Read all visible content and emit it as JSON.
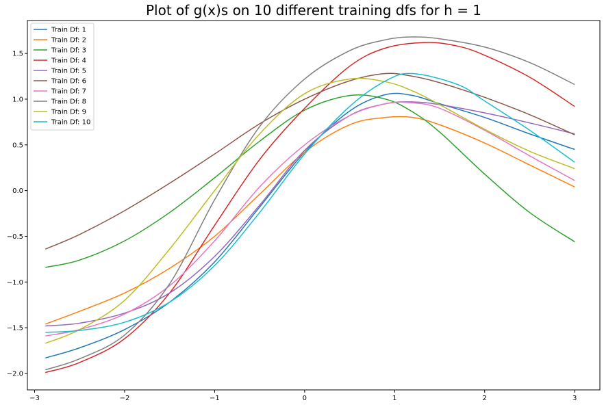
{
  "chart_data": {
    "type": "line",
    "title": "Plot of g(x)s on 10 different training dfs for h = 1",
    "xlabel": "",
    "ylabel": "",
    "xlim": [
      -3.08,
      3.28
    ],
    "ylim": [
      -2.18,
      1.86
    ],
    "xticks": [
      -3,
      -2,
      -1,
      0,
      1,
      2,
      3
    ],
    "xtick_labels": [
      "−3",
      "−2",
      "−1",
      "0",
      "1",
      "2",
      "3"
    ],
    "yticks": [
      -2.0,
      -1.5,
      -1.0,
      -0.5,
      0.0,
      0.5,
      1.0,
      1.5
    ],
    "ytick_labels": [
      "−2.0",
      "−1.5",
      "−1.0",
      "−0.5",
      "0.0",
      "0.5",
      "1.0",
      "1.5"
    ],
    "grid": false,
    "legend_position": "top-left",
    "series": [
      {
        "name": "Train Df: 1",
        "color": "#1f77b4",
        "x": [
          -2.88,
          -2.5,
          -2.0,
          -1.5,
          -1.0,
          -0.5,
          0.0,
          0.5,
          0.9,
          1.2,
          1.5,
          2.0,
          2.5,
          3.0
        ],
        "y": [
          -1.83,
          -1.72,
          -1.52,
          -1.22,
          -0.78,
          -0.18,
          0.42,
          0.87,
          1.05,
          1.04,
          0.95,
          0.8,
          0.62,
          0.45
        ]
      },
      {
        "name": "Train Df: 2",
        "color": "#ff7f0e",
        "x": [
          -2.88,
          -2.5,
          -2.0,
          -1.5,
          -1.0,
          -0.5,
          0.0,
          0.5,
          0.9,
          1.2,
          1.5,
          2.0,
          2.5,
          3.0
        ],
        "y": [
          -1.46,
          -1.32,
          -1.12,
          -0.85,
          -0.5,
          -0.04,
          0.42,
          0.72,
          0.8,
          0.8,
          0.72,
          0.52,
          0.28,
          0.04
        ]
      },
      {
        "name": "Train Df: 3",
        "color": "#2ca02c",
        "x": [
          -2.88,
          -2.5,
          -2.0,
          -1.5,
          -1.0,
          -0.5,
          0.0,
          0.5,
          0.9,
          1.2,
          1.5,
          2.0,
          2.5,
          3.0
        ],
        "y": [
          -0.84,
          -0.76,
          -0.55,
          -0.24,
          0.14,
          0.54,
          0.88,
          1.04,
          1.0,
          0.86,
          0.64,
          0.18,
          -0.24,
          -0.56
        ]
      },
      {
        "name": "Train Df: 4",
        "color": "#d62728",
        "x": [
          -2.88,
          -2.5,
          -2.0,
          -1.5,
          -1.0,
          -0.5,
          0.0,
          0.5,
          0.9,
          1.35,
          1.7,
          2.0,
          2.5,
          3.0
        ],
        "y": [
          -1.99,
          -1.88,
          -1.62,
          -1.12,
          -0.38,
          0.34,
          0.9,
          1.36,
          1.56,
          1.62,
          1.58,
          1.48,
          1.24,
          0.92
        ]
      },
      {
        "name": "Train Df: 5",
        "color": "#9467bd",
        "x": [
          -2.88,
          -2.5,
          -2.0,
          -1.5,
          -1.0,
          -0.5,
          0.0,
          0.5,
          0.9,
          1.2,
          1.5,
          2.0,
          2.5,
          3.0
        ],
        "y": [
          -1.48,
          -1.45,
          -1.34,
          -1.12,
          -0.72,
          -0.16,
          0.44,
          0.82,
          0.95,
          0.97,
          0.94,
          0.85,
          0.74,
          0.62
        ]
      },
      {
        "name": "Train Df: 6",
        "color": "#8c564b",
        "x": [
          -2.88,
          -2.5,
          -2.0,
          -1.5,
          -1.0,
          -0.5,
          0.0,
          0.5,
          0.9,
          1.2,
          1.5,
          2.0,
          2.5,
          3.0
        ],
        "y": [
          -0.64,
          -0.48,
          -0.22,
          0.08,
          0.4,
          0.73,
          1.0,
          1.2,
          1.28,
          1.25,
          1.18,
          1.02,
          0.83,
          0.61
        ]
      },
      {
        "name": "Train Df: 7",
        "color": "#e377c2",
        "x": [
          -2.88,
          -2.5,
          -2.0,
          -1.5,
          -1.0,
          -0.5,
          0.0,
          0.5,
          0.9,
          1.2,
          1.5,
          2.0,
          2.5,
          3.0
        ],
        "y": [
          -1.59,
          -1.52,
          -1.35,
          -1.04,
          -0.55,
          0.04,
          0.5,
          0.82,
          0.95,
          0.96,
          0.9,
          0.66,
          0.38,
          0.11
        ]
      },
      {
        "name": "Train Df: 8",
        "color": "#7f7f7f",
        "x": [
          -2.88,
          -2.5,
          -2.0,
          -1.5,
          -1.0,
          -0.5,
          0.0,
          0.5,
          0.9,
          1.2,
          1.5,
          2.0,
          2.5,
          3.0
        ],
        "y": [
          -1.96,
          -1.84,
          -1.58,
          -1.02,
          -0.1,
          0.7,
          1.22,
          1.53,
          1.65,
          1.68,
          1.66,
          1.57,
          1.4,
          1.16
        ]
      },
      {
        "name": "Train Df: 9",
        "color": "#bcbd22",
        "x": [
          -2.88,
          -2.5,
          -2.0,
          -1.5,
          -1.0,
          -0.5,
          0.0,
          0.5,
          0.9,
          1.2,
          1.5,
          2.0,
          2.5,
          3.0
        ],
        "y": [
          -1.67,
          -1.52,
          -1.2,
          -0.64,
          0.0,
          0.62,
          1.06,
          1.22,
          1.19,
          1.09,
          0.94,
          0.67,
          0.43,
          0.24
        ]
      },
      {
        "name": "Train Df: 10",
        "color": "#17becf",
        "x": [
          -2.88,
          -2.5,
          -2.0,
          -1.5,
          -1.0,
          -0.5,
          0.0,
          0.5,
          0.9,
          1.2,
          1.7,
          2.0,
          2.5,
          3.0
        ],
        "y": [
          -1.55,
          -1.53,
          -1.44,
          -1.22,
          -0.82,
          -0.24,
          0.4,
          0.92,
          1.2,
          1.28,
          1.16,
          0.98,
          0.66,
          0.31
        ]
      }
    ]
  }
}
